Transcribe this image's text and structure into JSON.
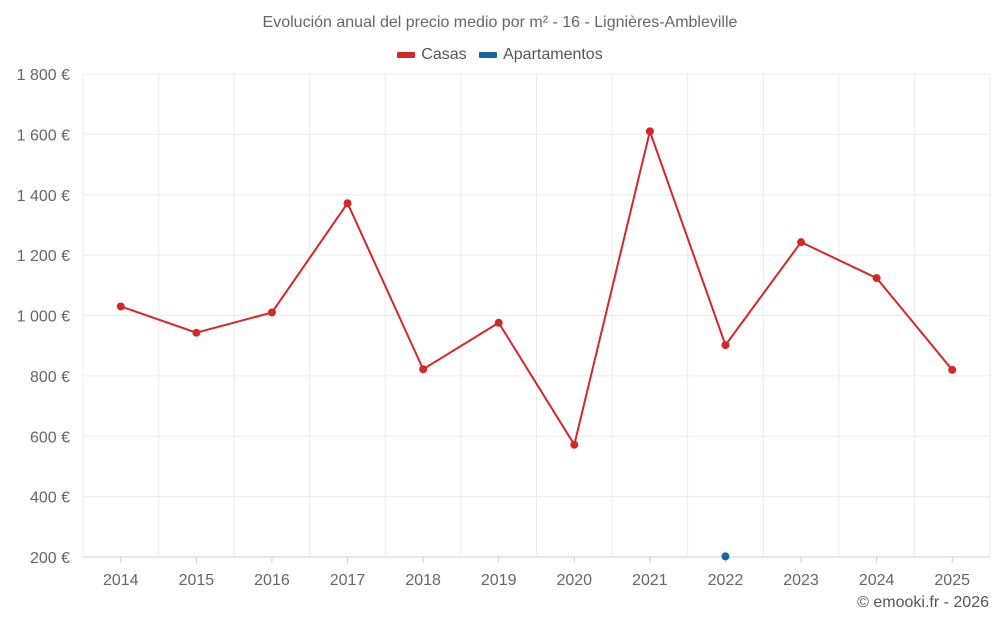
{
  "chart_data": {
    "type": "line",
    "title": "Evolución anual del precio medio por m² - 16 - Lignières-Ambleville",
    "categories": [
      "2014",
      "2015",
      "2016",
      "2017",
      "2018",
      "2019",
      "2020",
      "2021",
      "2022",
      "2023",
      "2024",
      "2025"
    ],
    "series": [
      {
        "name": "Casas",
        "color": "#d62728",
        "values": [
          1030,
          943,
          1010,
          1372,
          822,
          976,
          572,
          1610,
          902,
          1243,
          1124,
          820
        ]
      },
      {
        "name": "Apartamentos",
        "color": "#1565a0",
        "values": [
          null,
          null,
          null,
          null,
          null,
          null,
          null,
          null,
          202,
          null,
          null,
          null
        ]
      }
    ],
    "ylim": [
      200,
      1800
    ],
    "yticks": [
      200,
      400,
      600,
      800,
      1000,
      1200,
      1400,
      1600,
      1800
    ],
    "ytick_labels": [
      "200 €",
      "400 €",
      "600 €",
      "800 €",
      "1 000 €",
      "1 200 €",
      "1 400 €",
      "1 600 €",
      "1 800 €"
    ],
    "grid": true,
    "legend_position": "top-center"
  },
  "credit": "© emooki.fr - 2026"
}
